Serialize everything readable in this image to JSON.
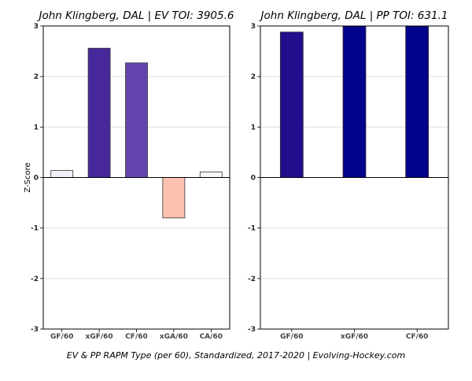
{
  "chart_data": [
    {
      "type": "bar",
      "title": "John Klingberg, DAL  |  EV TOI: 3905.6",
      "ylabel": "Z-Score",
      "xlabel": "",
      "ylim": [
        -3,
        3
      ],
      "yticks": [
        -3,
        -2,
        -1,
        0,
        1,
        2,
        3
      ],
      "grid": true,
      "categories": [
        "GF/60",
        "xGF/60",
        "CF/60",
        "xGA/60",
        "CA/60"
      ],
      "values": [
        0.14,
        2.56,
        2.27,
        -0.8,
        0.11
      ],
      "colors": [
        "#f1f0f8",
        "#46289a",
        "#6644ae",
        "#fcc2b0",
        "#f8f8fb"
      ]
    },
    {
      "type": "bar",
      "title": "John Klingberg, DAL  |  PP TOI: 631.1",
      "ylabel": "",
      "xlabel": "",
      "ylim": [
        -3,
        3
      ],
      "yticks": [
        -3,
        -2,
        -1,
        0,
        1,
        2,
        3
      ],
      "grid": true,
      "categories": [
        "GF/60",
        "xGF/60",
        "CF/60"
      ],
      "values": [
        2.88,
        3.0,
        3.0
      ],
      "colors": [
        "#220e8c",
        "#02028a",
        "#02028a"
      ]
    }
  ],
  "footer": "EV & PP RAPM Type (per 60), Standardized, 2017-2020    |    Evolving-Hockey.com"
}
